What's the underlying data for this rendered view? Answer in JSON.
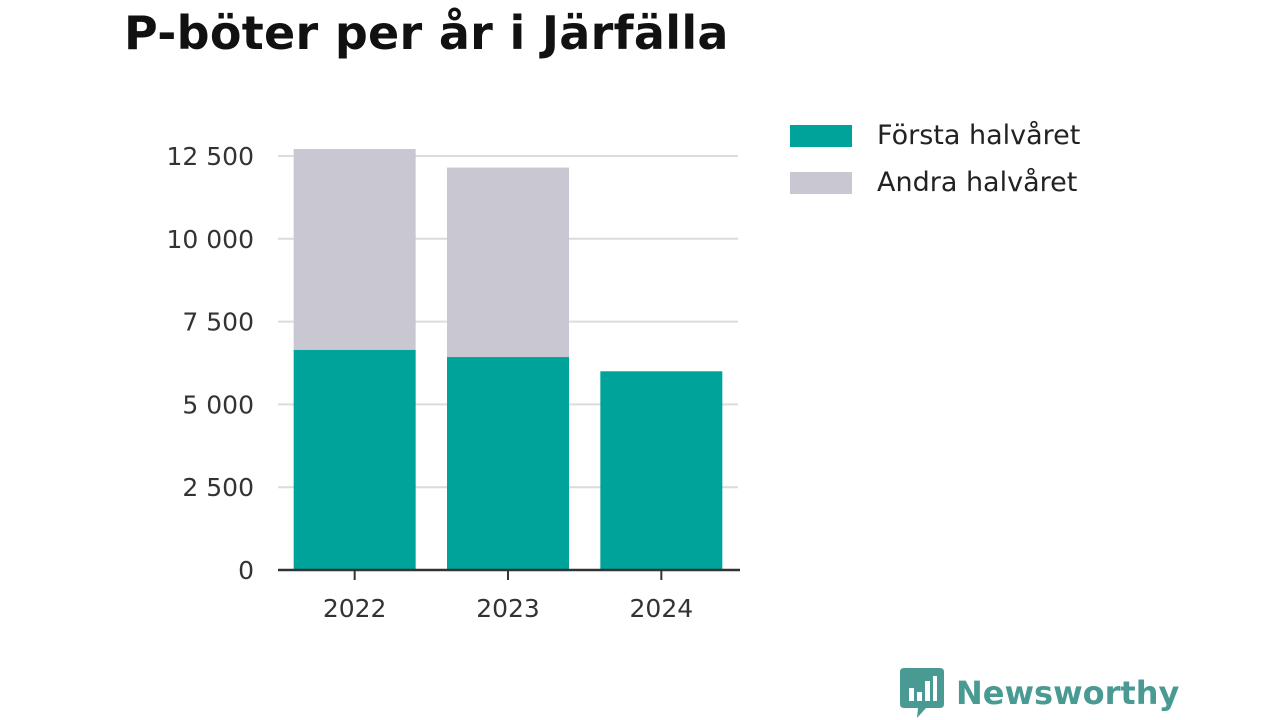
{
  "chart_data": {
    "type": "bar",
    "stacked": true,
    "title": "P-böter per år i Järfälla",
    "categories": [
      "2022",
      "2023",
      "2024"
    ],
    "series": [
      {
        "name": "Första halvåret",
        "color": "#00a39a",
        "values": [
          6650,
          6430,
          6000
        ]
      },
      {
        "name": "Andra halvåret",
        "color": "#c8c7d2",
        "values": [
          6060,
          5720,
          0
        ]
      }
    ],
    "ylim": [
      0,
      12500
    ],
    "yticks": [
      0,
      2500,
      5000,
      7500,
      10000,
      12500
    ],
    "ytick_labels": [
      "0",
      "2 500",
      "5 000",
      "7 500",
      "10 000",
      "12 500"
    ],
    "xlabel": "",
    "ylabel": "",
    "grid": true,
    "legend_position": "right"
  },
  "brand": {
    "name": "Newsworthy",
    "color": "#4a9a94",
    "icon": "bar-chart-speech-bubble-icon"
  }
}
